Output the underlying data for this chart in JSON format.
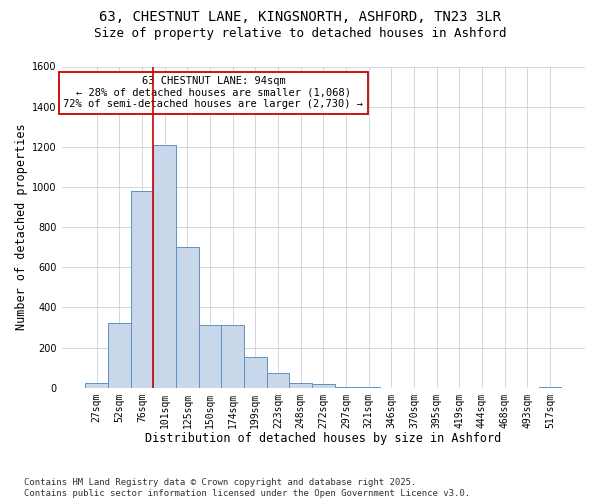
{
  "title_line1": "63, CHESTNUT LANE, KINGSNORTH, ASHFORD, TN23 3LR",
  "title_line2": "Size of property relative to detached houses in Ashford",
  "xlabel": "Distribution of detached houses by size in Ashford",
  "ylabel": "Number of detached properties",
  "categories": [
    "27sqm",
    "52sqm",
    "76sqm",
    "101sqm",
    "125sqm",
    "150sqm",
    "174sqm",
    "199sqm",
    "223sqm",
    "248sqm",
    "272sqm",
    "297sqm",
    "321sqm",
    "346sqm",
    "370sqm",
    "395sqm",
    "419sqm",
    "444sqm",
    "468sqm",
    "493sqm",
    "517sqm"
  ],
  "values": [
    25,
    320,
    980,
    1210,
    700,
    310,
    310,
    155,
    75,
    25,
    20,
    5,
    2,
    1,
    1,
    1,
    1,
    1,
    1,
    1,
    5
  ],
  "bar_color": "#c8d8ea",
  "bar_edge_color": "#6090c0",
  "vline_x_index": 3,
  "vline_color": "#cc0000",
  "annotation_text": "63 CHESTNUT LANE: 94sqm\n← 28% of detached houses are smaller (1,068)\n72% of semi-detached houses are larger (2,730) →",
  "annotation_box_facecolor": "#ffffff",
  "annotation_box_edgecolor": "#cc0000",
  "background_color": "#ffffff",
  "plot_bg_color": "#ffffff",
  "ylim": [
    0,
    1600
  ],
  "yticks": [
    0,
    200,
    400,
    600,
    800,
    1000,
    1200,
    1400,
    1600
  ],
  "footer": "Contains HM Land Registry data © Crown copyright and database right 2025.\nContains public sector information licensed under the Open Government Licence v3.0.",
  "title_fontsize": 10,
  "subtitle_fontsize": 9,
  "axis_label_fontsize": 8.5,
  "tick_fontsize": 7,
  "footer_fontsize": 6.5
}
